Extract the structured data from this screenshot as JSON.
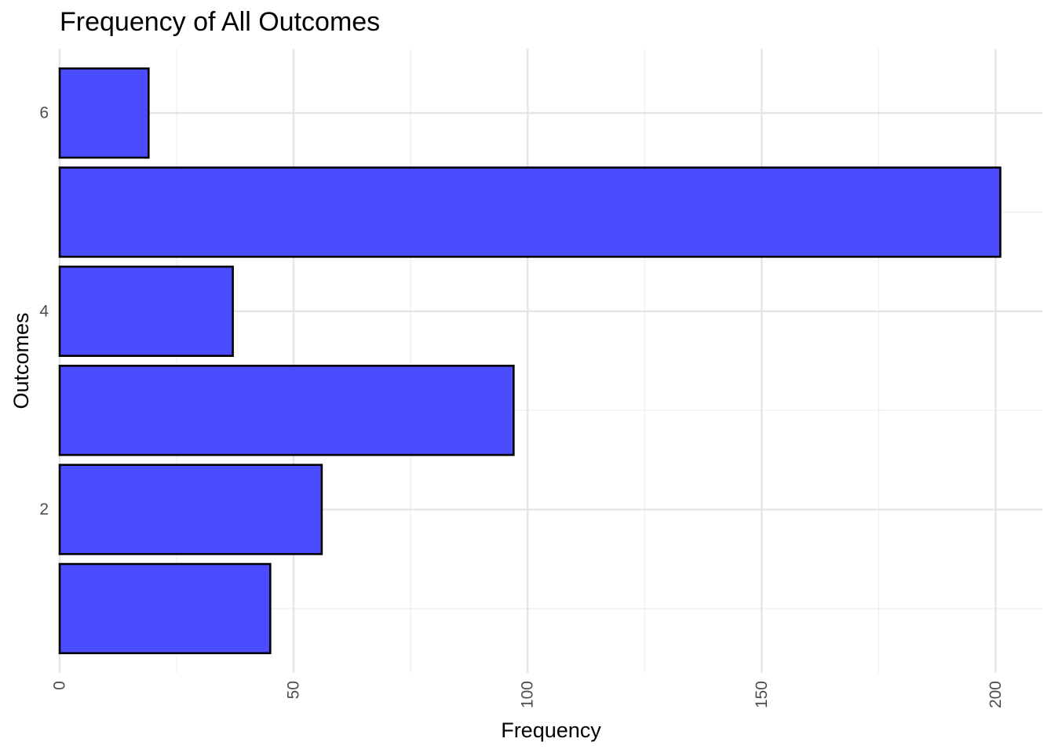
{
  "chart_data": {
    "type": "bar",
    "orientation": "horizontal",
    "title": "Frequency of All Outcomes",
    "xlabel": "Frequency",
    "ylabel": "Outcomes",
    "categories": [
      1,
      2,
      3,
      4,
      5,
      6
    ],
    "values": [
      45,
      56,
      97,
      37,
      201,
      19
    ],
    "xlim": [
      0,
      210
    ],
    "ylim": [
      0.35,
      6.65
    ],
    "x_ticks": [
      0,
      50,
      100,
      150,
      200
    ],
    "y_ticks": [
      2,
      4,
      6
    ],
    "bar_color": "#4b4bff",
    "bar_border_color": "#000000",
    "grid": true,
    "legend": "none"
  }
}
